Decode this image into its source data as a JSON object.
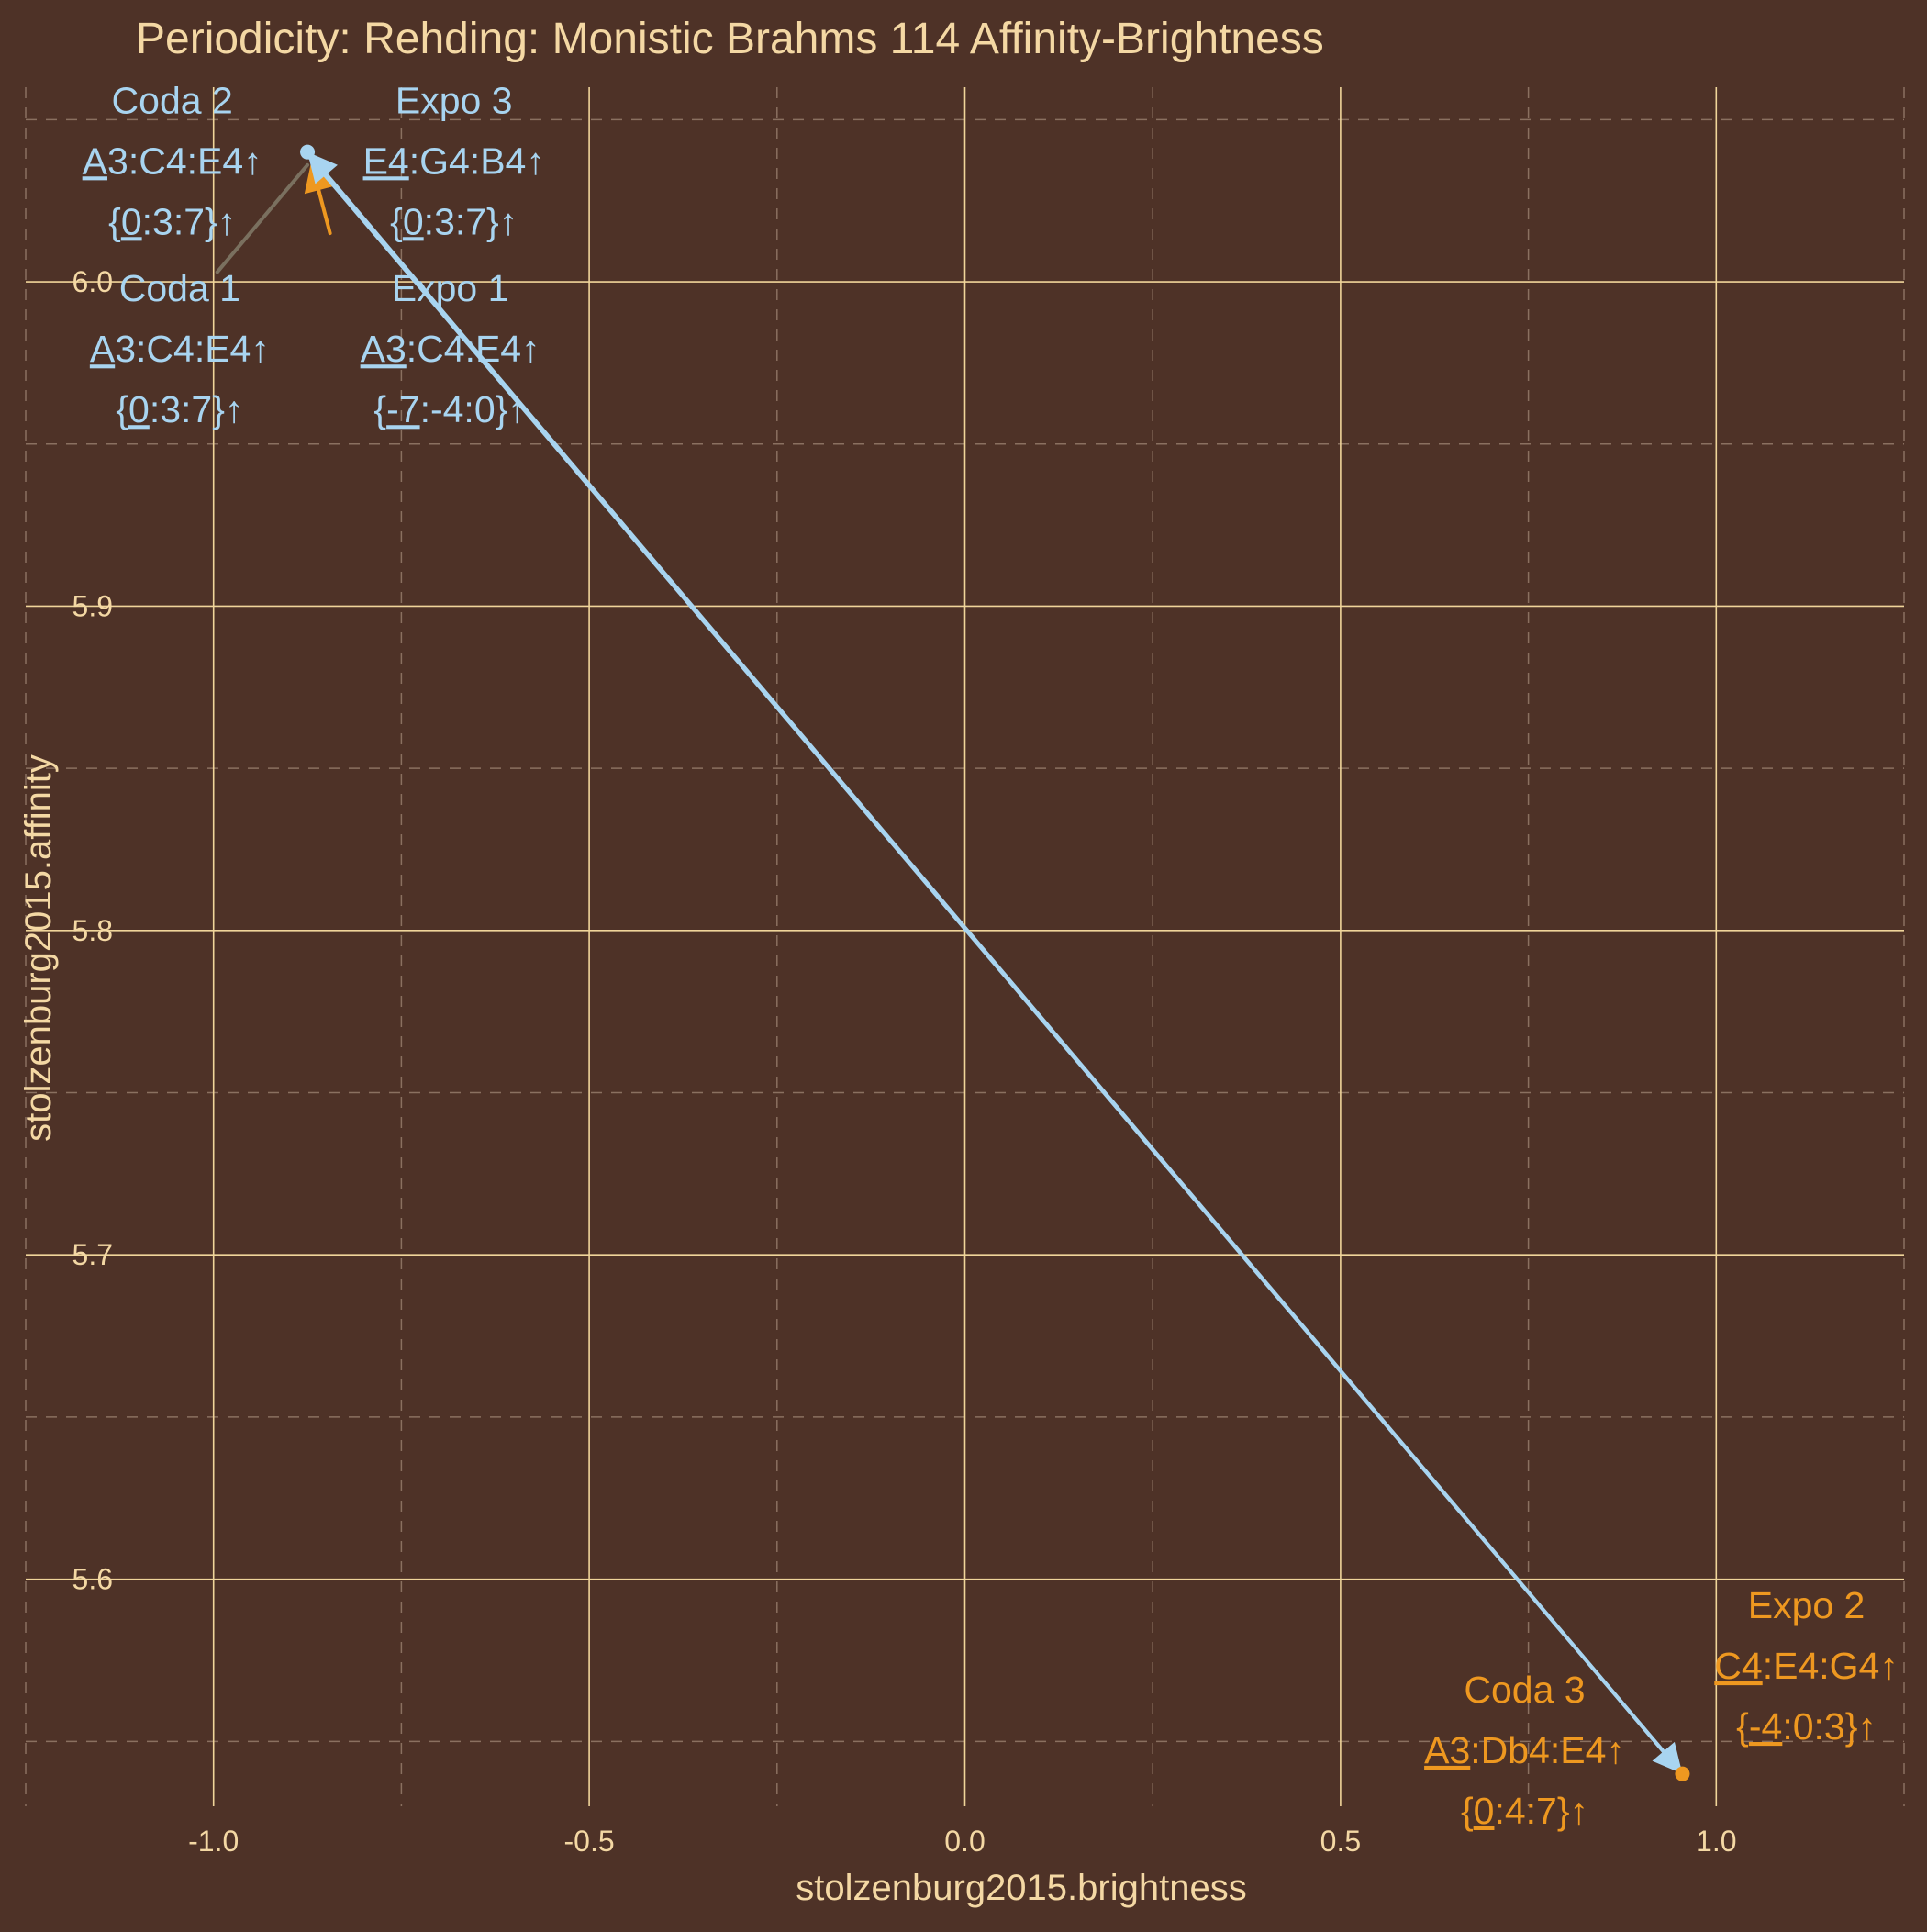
{
  "chart_data": {
    "type": "scatter",
    "title": "Periodicity: Rehding: Monistic Brahms 114 Affinity-Brightness",
    "xlabel": "stolzenburg2015.brightness",
    "ylabel": "stolzenburg2015.affinity",
    "xlim": [
      -1.25,
      1.25
    ],
    "ylim": [
      5.53,
      6.06
    ],
    "x_ticks": [
      -1.0,
      -0.5,
      0.0,
      0.5,
      1.0
    ],
    "x_tick_labels": [
      "-1.0",
      "-0.5",
      "0.0",
      "0.5",
      "1.0"
    ],
    "y_ticks": [
      5.6,
      5.7,
      5.8,
      5.9,
      6.0
    ],
    "y_tick_labels": [
      "5.6",
      "5.7",
      "5.8",
      "5.9",
      "6.0"
    ],
    "grid": true,
    "colors": {
      "background": "#4e3227",
      "text": "#f4d8a4",
      "grid_major": "#f0d59a",
      "grid_minor": "#8a7060",
      "minor": "#a8d4f0",
      "major": "#ee9820",
      "gray_arrow": "#7a705f"
    },
    "points": [
      {
        "x": -0.875,
        "y": 6.04,
        "color": "minor"
      },
      {
        "x": 0.955,
        "y": 5.54,
        "color": "major"
      }
    ],
    "arrows": [
      {
        "from": [
          -0.995,
          6.003
        ],
        "to": [
          -0.875,
          6.036
        ],
        "color": "gray_arrow",
        "head": false
      },
      {
        "from": [
          -0.845,
          6.015
        ],
        "to": [
          -0.87,
          6.037
        ],
        "color": "major",
        "head": true
      },
      {
        "from": [
          -0.878,
          6.04
        ],
        "to": [
          0.955,
          5.54
        ],
        "color": "minor",
        "head": true
      },
      {
        "from": [
          0.955,
          5.54
        ],
        "to": [
          -0.875,
          6.04
        ],
        "color": "minor",
        "head": true
      }
    ],
    "labels": [
      {
        "color": "minor",
        "x": -1.055,
        "y": 6.052,
        "lines": [
          [
            {
              "t": "Coda 2"
            }
          ],
          [
            {
              "t": "A3",
              "u": "A"
            },
            {
              "t": ":C4:E4↑"
            }
          ],
          [
            {
              "t": "{"
            },
            {
              "t": "0",
              "u": "0"
            },
            {
              "t": ":3:7}↑"
            }
          ]
        ]
      },
      {
        "color": "minor",
        "x": -0.68,
        "y": 6.052,
        "lines": [
          [
            {
              "t": "Expo 3"
            }
          ],
          [
            {
              "t": "E4",
              "u": "E4"
            },
            {
              "t": ":G4:B4↑"
            }
          ],
          [
            {
              "t": "{"
            },
            {
              "t": "0",
              "u": "0"
            },
            {
              "t": ":3:7}↑"
            }
          ]
        ]
      },
      {
        "color": "minor",
        "x": -1.045,
        "y": 5.994,
        "lines": [
          [
            {
              "t": "Coda 1"
            }
          ],
          [
            {
              "t": "A3",
              "u": "A"
            },
            {
              "t": ":C4:E4↑"
            }
          ],
          [
            {
              "t": "{"
            },
            {
              "t": "0",
              "u": "0"
            },
            {
              "t": ":3:7}↑"
            }
          ]
        ]
      },
      {
        "color": "minor",
        "x": -0.685,
        "y": 5.994,
        "lines": [
          [
            {
              "t": "Expo 1"
            }
          ],
          [
            {
              "t": "A3",
              "u": "A3"
            },
            {
              "t": ":C4:E4↑"
            }
          ],
          [
            {
              "t": "{"
            },
            {
              "t": "-7",
              "u": "-7"
            },
            {
              "t": ":-4:0}↑"
            }
          ]
        ]
      },
      {
        "color": "major",
        "x": 1.12,
        "y": 5.588,
        "lines": [
          [
            {
              "t": "Expo 2"
            }
          ],
          [
            {
              "t": "C4",
              "u": "C4"
            },
            {
              "t": ":E4:G4↑"
            }
          ],
          [
            {
              "t": "{"
            },
            {
              "t": "-4",
              "u": "-4"
            },
            {
              "t": ":0:3}↑"
            }
          ]
        ]
      },
      {
        "color": "major",
        "x": 0.745,
        "y": 5.562,
        "lines": [
          [
            {
              "t": "Coda 3"
            }
          ],
          [
            {
              "t": "A3",
              "u": "A3"
            },
            {
              "t": ":Db4:E4↑"
            }
          ],
          [
            {
              "t": "{"
            },
            {
              "t": "0",
              "u": "0"
            },
            {
              "t": ":4:7}↑"
            }
          ]
        ]
      }
    ]
  }
}
